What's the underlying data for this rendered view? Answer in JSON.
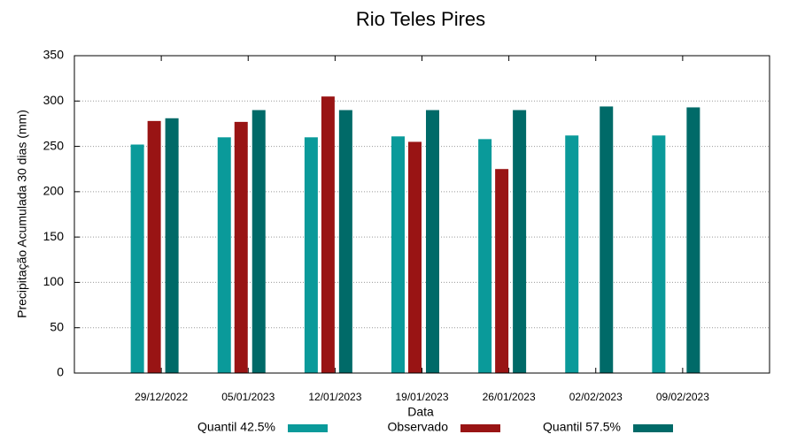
{
  "chart_data": {
    "type": "bar",
    "title": "Rio Teles Pires",
    "x_label": "Data",
    "y_label": "Precipitação Acumulada 30 dias (mm)",
    "categories": [
      "29/12/2022",
      "05/01/2023",
      "12/01/2023",
      "19/01/2023",
      "26/01/2023",
      "02/02/2023",
      "09/02/2023"
    ],
    "series": [
      {
        "name": "Quantil 42.5%",
        "color": "#0a9a9a",
        "values": [
          252,
          260,
          260,
          261,
          258,
          262,
          262
        ]
      },
      {
        "name": "Observado",
        "color": "#991414",
        "values": [
          278,
          277,
          305,
          255,
          225,
          null,
          null
        ]
      },
      {
        "name": "Quantil 57.5%",
        "color": "#006a68",
        "values": [
          281,
          290,
          290,
          290,
          290,
          294,
          293
        ]
      }
    ],
    "ylim": [
      0,
      350
    ],
    "yticks": [
      0,
      50,
      100,
      150,
      200,
      250,
      300,
      350
    ],
    "grid": true,
    "legend": "bottom"
  }
}
